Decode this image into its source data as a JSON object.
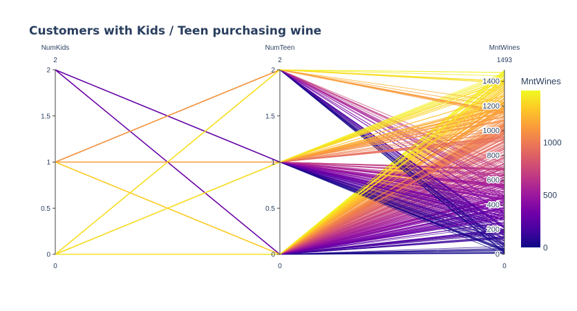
{
  "chart_data": {
    "type": "parallel_coordinates",
    "title": "Customers with Kids / Teen purchasing wine",
    "dimensions": [
      {
        "label": "NumKids",
        "range": [
          0,
          2
        ],
        "range_labels": [
          "0",
          "2"
        ],
        "ticks": [
          "0",
          "0.5",
          "1",
          "1.5",
          "2"
        ]
      },
      {
        "label": "NumTeen",
        "range": [
          0,
          2
        ],
        "range_labels": [
          "0",
          "2"
        ],
        "ticks": [
          "0",
          "0.5",
          "1",
          "1.5",
          "2"
        ]
      },
      {
        "label": "MntWines",
        "range": [
          0,
          1493
        ],
        "range_labels": [
          "0",
          "1493"
        ],
        "ticks": [
          "0",
          "200",
          "400",
          "600",
          "800",
          "1000",
          "1200",
          "1400"
        ]
      }
    ],
    "colorbar": {
      "title": "MntWines",
      "ticks": [
        "0",
        "500",
        "1000"
      ],
      "range": [
        0,
        1493
      ],
      "colorscale": [
        "#0d0887",
        "#46039f",
        "#7201a8",
        "#9c179e",
        "#bd3786",
        "#d8576b",
        "#ed7953",
        "#fb9f3a",
        "#fdca26",
        "#f0f921"
      ]
    },
    "highlight_lines": [
      {
        "kids": 2,
        "teen": 1,
        "wine": 280
      },
      {
        "kids": 2,
        "teen": 0,
        "wine": 300
      },
      {
        "kids": 1,
        "teen": 2,
        "wine": 1150
      },
      {
        "kids": 1,
        "teen": 1,
        "wine": 1150
      },
      {
        "kids": 1,
        "teen": 0,
        "wine": 1340
      },
      {
        "kids": 0,
        "teen": 2,
        "wine": 1400
      },
      {
        "kids": 0,
        "teen": 1,
        "wine": 1400
      },
      {
        "kids": 0,
        "teen": 0,
        "wine": 1420
      }
    ]
  }
}
